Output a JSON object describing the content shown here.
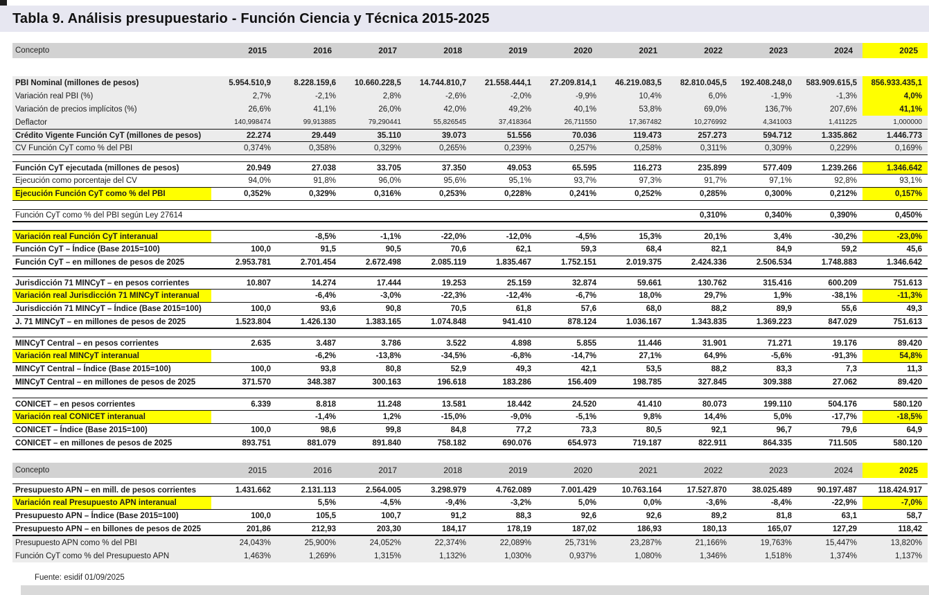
{
  "title": "Tabla 9. Análisis presupuestario - Función Ciencia y Técnica 2015-2025",
  "source_note": "Fuente: esidif 01/09/2025",
  "colors": {
    "highlight": "#ffff00",
    "header_bg": "#d2d2d2",
    "title_bg": "#e7e7f1",
    "row_gray": "#ececec",
    "bottom_bar": "#d9d9d9"
  },
  "columns": {
    "concept": "Concepto",
    "years": [
      "2015",
      "2016",
      "2017",
      "2018",
      "2019",
      "2020",
      "2021",
      "2022",
      "2023",
      "2024",
      "2025"
    ]
  },
  "table1": {
    "header_bold_years": true,
    "sections": [
      {
        "gap": "gap26",
        "rows": [
          {
            "label": "PBI Nominal (millones de pesos)",
            "bold": true,
            "bg": "gray",
            "hl2025": true,
            "values": [
              "5.954.510,9",
              "8.228.159,6",
              "10.660.228,5",
              "14.744.810,7",
              "21.558.444,1",
              "27.209.814,1",
              "46.219.083,5",
              "82.810.045,5",
              "192.408.248,0",
              "583.909.615,5",
              "856.933.435,1"
            ]
          },
          {
            "label": "Variación real PBI (%)",
            "bg": "gray",
            "hl2025": true,
            "values": [
              "2,7%",
              "-2,1%",
              "2,8%",
              "-2,6%",
              "-2,0%",
              "-9,9%",
              "10,4%",
              "6,0%",
              "-1,9%",
              "-1,3%",
              "4,0%"
            ]
          },
          {
            "label": "Variación de precios implícitos (%)",
            "bg": "gray",
            "hl2025": true,
            "values": [
              "26,6%",
              "41,1%",
              "26,0%",
              "42,0%",
              "49,2%",
              "40,1%",
              "53,8%",
              "69,0%",
              "136,7%",
              "207,6%",
              "41,1%"
            ]
          },
          {
            "label": "Deflactor",
            "bg": "gray",
            "small": true,
            "values": [
              "140,998474",
              "99,913885",
              "79,290441",
              "55,826545",
              "37,418364",
              "26,711550",
              "17,367482",
              "10,276992",
              "4,341003",
              "1,411225",
              "1,000000"
            ]
          },
          {
            "label": "Crédito Vigente Función CyT (millones de pesos)",
            "bold": true,
            "bg": "gray",
            "bt": true,
            "bb": true,
            "values": [
              "22.274",
              "29.449",
              "35.110",
              "39.073",
              "51.556",
              "70.036",
              "119.473",
              "257.273",
              "594.712",
              "1.335.862",
              "1.446.773"
            ]
          },
          {
            "label": "CV Función CyT como % del PBI",
            "bg": "gray",
            "bb": true,
            "values": [
              "0,374%",
              "0,358%",
              "0,329%",
              "0,265%",
              "0,239%",
              "0,257%",
              "0,258%",
              "0,311%",
              "0,309%",
              "0,229%",
              "0,169%"
            ]
          }
        ]
      },
      {
        "gap": "gap9",
        "rows": [
          {
            "label": "Función CyT ejecutada (millones de pesos)",
            "bold": true,
            "bt": true,
            "bb": true,
            "hl2025": true,
            "values": [
              "20.949",
              "27.038",
              "33.705",
              "37.350",
              "49.053",
              "65.595",
              "116.273",
              "235.899",
              "577.409",
              "1.239.266",
              "1.346.642"
            ]
          },
          {
            "label": "Ejecución como porcentaje del CV",
            "bb": true,
            "values": [
              "94,0%",
              "91,8%",
              "96,0%",
              "95,6%",
              "95,1%",
              "93,7%",
              "97,3%",
              "91,7%",
              "97,1%",
              "92,8%",
              "93,1%"
            ]
          },
          {
            "label": "Ejecución Función CyT como % del PBI",
            "bold": true,
            "label_hl": true,
            "bb": true,
            "hl2025": true,
            "values": [
              "0,352%",
              "0,329%",
              "0,316%",
              "0,253%",
              "0,228%",
              "0,241%",
              "0,252%",
              "0,285%",
              "0,300%",
              "0,212%",
              "0,157%"
            ]
          }
        ]
      },
      {
        "gap": "gap12",
        "rows": [
          {
            "label": "Función CyT como % del PBI según Ley 27614",
            "bt": true,
            "bb2": true,
            "boldvals": true,
            "values": [
              "",
              "",
              "",
              "",
              "",
              "",
              "",
              "0,310%",
              "0,340%",
              "0,390%",
              "0,450%"
            ]
          }
        ]
      },
      {
        "gap": "gap11",
        "rows": [
          {
            "label": "Variación real Función CyT interanual",
            "bold": true,
            "label_hl": true,
            "bt": true,
            "bb": true,
            "hl2025": true,
            "values": [
              "",
              "-8,5%",
              "-1,1%",
              "-22,0%",
              "-12,0%",
              "-4,5%",
              "15,3%",
              "20,1%",
              "3,4%",
              "-30,2%",
              "-23,0%"
            ]
          },
          {
            "label": "Función CyT – Índice (Base 2015=100)",
            "bold": true,
            "bb": true,
            "values": [
              "100,0",
              "91,5",
              "90,5",
              "70,6",
              "62,1",
              "59,3",
              "68,4",
              "82,1",
              "84,9",
              "59,2",
              "45,6"
            ]
          },
          {
            "label": "Función CyT – en millones de pesos de 2025",
            "bold": true,
            "bb2": true,
            "values": [
              "2.953.781",
              "2.701.454",
              "2.672.498",
              "2.085.119",
              "1.835.467",
              "1.752.151",
              "2.019.375",
              "2.424.336",
              "2.506.534",
              "1.748.883",
              "1.346.642"
            ]
          }
        ]
      },
      {
        "gap": "gap10",
        "rows": [
          {
            "label": "Jurisdicción 71 MINCyT – en pesos corrientes",
            "bold": true,
            "bt": true,
            "bb": true,
            "values": [
              "10.807",
              "14.274",
              "17.444",
              "19.253",
              "25.159",
              "32.874",
              "59.661",
              "130.762",
              "315.416",
              "600.209",
              "751.613"
            ]
          },
          {
            "label": "Variación real Jurisdicción 71 MINCyT interanual",
            "bold": true,
            "label_hl": true,
            "bb": true,
            "hl2025": true,
            "values": [
              "",
              "-6,4%",
              "-3,0%",
              "-22,3%",
              "-12,4%",
              "-6,7%",
              "18,0%",
              "29,7%",
              "1,9%",
              "-38,1%",
              "-11,3%"
            ]
          },
          {
            "label": "Jurisdicción 71 MINCyT – Índice (Base 2015=100)",
            "bold": true,
            "bb": true,
            "values": [
              "100,0",
              "93,6",
              "90,8",
              "70,5",
              "61,8",
              "57,6",
              "68,0",
              "88,2",
              "89,9",
              "55,6",
              "49,3"
            ]
          },
          {
            "label": "J. 71 MINCyT – en millones de pesos de 2025",
            "bold": true,
            "bb2": true,
            "values": [
              "1.523.804",
              "1.426.130",
              "1.383.165",
              "1.074.848",
              "941.410",
              "878.124",
              "1.036.167",
              "1.343.835",
              "1.369.223",
              "847.029",
              "751.613"
            ]
          }
        ]
      },
      {
        "gap": "gap11",
        "rows": [
          {
            "label": "MINCyT  Central – en pesos corrientes",
            "bold": true,
            "bt": true,
            "bb": true,
            "values": [
              "2.635",
              "3.487",
              "3.786",
              "3.522",
              "4.898",
              "5.855",
              "11.446",
              "31.901",
              "71.271",
              "19.176",
              "89.420"
            ]
          },
          {
            "label": "Variación real MINCyT interanual",
            "bold": true,
            "label_hl": true,
            "bb": true,
            "hl2025": true,
            "values": [
              "",
              "-6,2%",
              "-13,8%",
              "-34,5%",
              "-6,8%",
              "-14,7%",
              "27,1%",
              "64,9%",
              "-5,6%",
              "-91,3%",
              "54,8%"
            ]
          },
          {
            "label": "MINCyT Central – Índice (Base 2015=100)",
            "bold": true,
            "bb": true,
            "values": [
              "100,0",
              "93,8",
              "80,8",
              "52,9",
              "49,3",
              "42,1",
              "53,5",
              "88,2",
              "83,3",
              "7,3",
              "11,3"
            ]
          },
          {
            "label": "MINCyT Central – en millones de pesos de 2025",
            "bold": true,
            "bb2": true,
            "values": [
              "371.570",
              "348.387",
              "300.163",
              "196.618",
              "183.286",
              "156.409",
              "198.785",
              "327.845",
              "309.388",
              "27.062",
              "89.420"
            ]
          }
        ]
      },
      {
        "gap": "gap12",
        "rows": [
          {
            "label": "CONICET – en pesos corrientes",
            "bold": true,
            "bt": true,
            "bb": true,
            "values": [
              "6.339",
              "8.818",
              "11.248",
              "13.581",
              "18.442",
              "24.520",
              "41.410",
              "80.073",
              "199.110",
              "504.176",
              "580.120"
            ]
          },
          {
            "label": "Variación real CONICET interanual",
            "bold": true,
            "label_hl": true,
            "bb": true,
            "hl2025": true,
            "values": [
              "",
              "-1,4%",
              "1,2%",
              "-15,0%",
              "-9,0%",
              "-5,1%",
              "9,8%",
              "14,4%",
              "5,0%",
              "-17,7%",
              "-18,5%"
            ]
          },
          {
            "label": "CONICET – Índice (Base 2015=100)",
            "bold": true,
            "bb": true,
            "values": [
              "100,0",
              "98,6",
              "99,8",
              "84,8",
              "77,2",
              "73,3",
              "80,5",
              "92,1",
              "96,7",
              "79,6",
              "64,9"
            ]
          },
          {
            "label": "CONICET – en millones de pesos de 2025",
            "bold": true,
            "bb2": true,
            "values": [
              "893.751",
              "881.079",
              "891.840",
              "758.182",
              "690.076",
              "654.973",
              "719.187",
              "822.911",
              "864.335",
              "711.505",
              "580.120"
            ]
          }
        ]
      }
    ]
  },
  "table2": {
    "header_bold_years": false,
    "sections": [
      {
        "gap": "gap8",
        "rows": [
          {
            "label": "Presupuesto APN – en mill. de pesos corrientes",
            "bold": true,
            "bt": true,
            "bb": true,
            "values": [
              "1.431.662",
              "2.131.113",
              "2.564.005",
              "3.298.979",
              "4.762.089",
              "7.001.429",
              "10.763.164",
              "17.527.870",
              "38.025.489",
              "90.197.487",
              "118.424.917"
            ]
          },
          {
            "label": "Variación real Presupuesto APN interanual",
            "bold": true,
            "label_hl": true,
            "bb": true,
            "hl2025": true,
            "values": [
              "",
              "5,5%",
              "-4,5%",
              "-9,4%",
              "-3,2%",
              "5,0%",
              "0,0%",
              "-3,6%",
              "-8,4%",
              "-22,9%",
              "-7,0%"
            ]
          },
          {
            "label": "Presupuesto APN – Índice (Base 2015=100)",
            "bold": true,
            "bb": true,
            "values": [
              "100,0",
              "105,5",
              "100,7",
              "91,2",
              "88,3",
              "92,6",
              "92,6",
              "89,2",
              "81,8",
              "63,1",
              "58,7"
            ]
          },
          {
            "label": "Presupuesto APN – en billones de pesos de 2025",
            "bold": true,
            "bb2": true,
            "values": [
              "201,86",
              "212,93",
              "203,30",
              "184,17",
              "178,19",
              "187,02",
              "186,93",
              "180,13",
              "165,07",
              "127,29",
              "118,42"
            ]
          },
          {
            "label": "Presupuesto APN como % del PBI",
            "bg": "gray",
            "values": [
              "24,043%",
              "25,900%",
              "24,052%",
              "22,374%",
              "22,089%",
              "25,731%",
              "23,287%",
              "21,166%",
              "19,763%",
              "15,447%",
              "13,820%"
            ]
          },
          {
            "label": "Función CyT como % del Presupuesto APN",
            "bg": "gray",
            "values": [
              "1,463%",
              "1,269%",
              "1,315%",
              "1,132%",
              "1,030%",
              "0,937%",
              "1,080%",
              "1,346%",
              "1,518%",
              "1,374%",
              "1,137%"
            ]
          }
        ]
      }
    ]
  }
}
